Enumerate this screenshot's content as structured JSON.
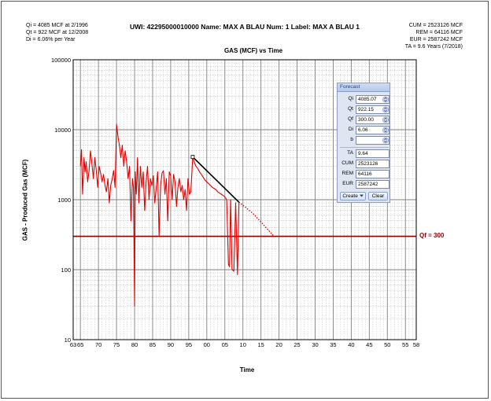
{
  "header": {
    "title": "UWI: 42295000010000 Name: MAX A BLAU Num: 1 Label: MAX A BLAU 1",
    "left_lines": [
      "Qi = 4085 MCF at 2/1996",
      "Qt = 922 MCF at 12/2008",
      "Di = 6.06% per Year"
    ],
    "right_lines": [
      "CUM = 2523126 MCF",
      "REM = 64116 MCF",
      "EUR = 2587242 MCF",
      "TA = 9.6 Years (7/2018)"
    ]
  },
  "qf_label": "Qf = 300",
  "forecast_panel": {
    "title": "Forecast",
    "inputs": [
      {
        "label": "Qi",
        "value": "4085.07",
        "spinner": true
      },
      {
        "label": "Qt",
        "value": "922.15",
        "spinner": true
      },
      {
        "label": "Qf",
        "value": "300.00",
        "spinner": true
      },
      {
        "label": "Di",
        "value": "6.06",
        "spinner": true
      },
      {
        "label": "b",
        "value": "",
        "spinner": true
      }
    ],
    "outputs": [
      {
        "label": "TA",
        "value": "9.64"
      },
      {
        "label": "CUM",
        "value": "2523126"
      },
      {
        "label": "REM",
        "value": "64116"
      },
      {
        "label": "EUR",
        "value": "2587242"
      }
    ],
    "create_label": "Create",
    "clear_label": "Clear"
  },
  "colors": {
    "production": "#e00000",
    "forecast": "#e00000",
    "qf_line": "#8b0000",
    "decline": "#000000",
    "grid_major": "#808080",
    "grid_minor": "#b0b0b0"
  },
  "chart_data": {
    "type": "line",
    "title": "GAS (MCF) vs Time",
    "xlabel": "Time",
    "ylabel": "GAS - Produced Gas (MCF)",
    "yscale": "log",
    "ylim": [
      10,
      100000
    ],
    "xlim": [
      1963,
      2058
    ],
    "x_ticks": [
      1963,
      1965,
      1970,
      1975,
      1980,
      1985,
      1990,
      1995,
      2000,
      2005,
      2010,
      2015,
      2020,
      2025,
      2030,
      2035,
      2040,
      2045,
      2050,
      2055,
      2058
    ],
    "x_tick_labels": [
      "63",
      "65",
      "70",
      "75",
      "80",
      "85",
      "90",
      "95",
      "00",
      "05",
      "10",
      "15",
      "20",
      "25",
      "30",
      "35",
      "40",
      "45",
      "50",
      "55",
      "58"
    ],
    "y_ticks": [
      10,
      100,
      1000,
      10000,
      100000
    ],
    "y_tick_labels": [
      "10",
      "100",
      "1000",
      "10000",
      "100000"
    ],
    "series": [
      {
        "name": "Production",
        "x": [
          1965.0,
          1965.3,
          1965.6,
          1966.0,
          1966.3,
          1966.6,
          1967.0,
          1967.4,
          1967.8,
          1968.2,
          1968.6,
          1969.0,
          1969.4,
          1969.8,
          1970.2,
          1970.6,
          1971.0,
          1971.4,
          1971.8,
          1972.2,
          1972.6,
          1973.0,
          1973.4,
          1973.8,
          1974.2,
          1974.6,
          1975.0,
          1975.4,
          1975.8,
          1976.2,
          1976.6,
          1977.0,
          1977.4,
          1977.8,
          1978.2,
          1978.6,
          1979.0,
          1979.4,
          1979.7,
          1980.0,
          1980.2,
          1980.5,
          1980.8,
          1981.2,
          1981.6,
          1982.0,
          1982.4,
          1982.8,
          1983.2,
          1983.6,
          1984.0,
          1984.4,
          1984.8,
          1985.2,
          1985.6,
          1986.0,
          1986.4,
          1986.8,
          1987.2,
          1987.6,
          1988.0,
          1988.4,
          1988.8,
          1989.2,
          1989.6,
          1990.0,
          1990.4,
          1990.8,
          1991.2,
          1991.6,
          1992.0,
          1992.4,
          1992.8,
          1993.2,
          1993.6,
          1994.0,
          1994.4,
          1994.8,
          1995.2,
          1995.6,
          1996.1,
          1996.5,
          1997.0,
          1997.5,
          1998.0,
          1998.5,
          1999.0,
          1999.5,
          2000.0,
          2000.5,
          2001.0,
          2001.5,
          2002.0,
          2002.5,
          2003.0,
          2003.5,
          2004.0,
          2004.5,
          2005.0,
          2005.5,
          2006.0,
          2006.3,
          2006.6,
          2007.0,
          2007.5,
          2008.0,
          2008.5,
          2008.9
        ],
        "values": [
          3000,
          5200,
          1200,
          4000,
          2500,
          3500,
          1800,
          2600,
          5000,
          3200,
          2000,
          4000,
          2600,
          1500,
          3000,
          2400,
          1800,
          2300,
          1600,
          1300,
          2000,
          900,
          1600,
          2000,
          2600,
          1500,
          12000,
          8000,
          6000,
          4000,
          6000,
          3000,
          5000,
          3500,
          2000,
          3000,
          500,
          2000,
          1500,
          30,
          2500,
          1200,
          4000,
          900,
          3000,
          1500,
          2500,
          700,
          1800,
          3000,
          1000,
          2000,
          1600,
          2200,
          900,
          1500,
          2500,
          300,
          1600,
          2400,
          2600,
          1200,
          2000,
          500,
          2500,
          2200,
          1000,
          2300,
          1800,
          800,
          1500,
          2000,
          1300,
          1600,
          1000,
          1400,
          700,
          2000,
          1200,
          1300,
          4085,
          3500,
          3000,
          2800,
          2500,
          2300,
          2100,
          1900,
          1800,
          1700,
          1600,
          1500,
          1450,
          1400,
          1300,
          1250,
          1200,
          1150,
          1100,
          1000,
          120,
          110,
          1000,
          100,
          95,
          900,
          85,
          922
        ]
      },
      {
        "name": "Forecast",
        "x": [
          2008.9,
          2011,
          2013,
          2015,
          2017,
          2018.6
        ],
        "values": [
          922,
          760,
          620,
          480,
          370,
          300
        ]
      },
      {
        "name": "Decline fit",
        "x": [
          1996.1,
          2008.9
        ],
        "values": [
          4085,
          922
        ]
      }
    ],
    "qf_value": 300
  }
}
